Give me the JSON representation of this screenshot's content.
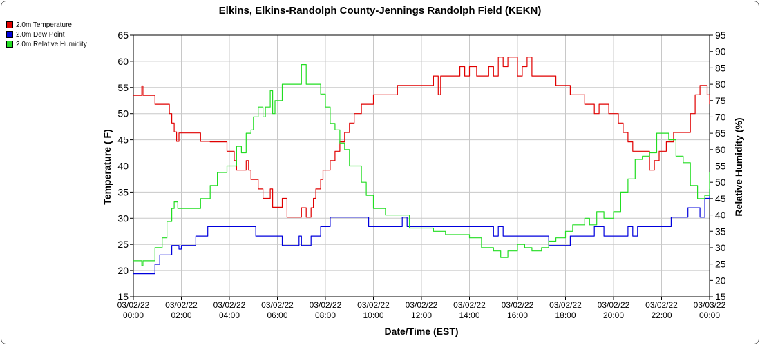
{
  "chart_data": {
    "type": "line",
    "title": "Elkins, Elkins-Randolph County-Jennings Randolph Field (KEKN)",
    "xlabel": "Date/Time (EST)",
    "ylabel_left": "Temperature ( F)",
    "ylabel_right": "Relative Humidity (%)",
    "ylim_left": [
      15,
      65
    ],
    "ylim_right": [
      15,
      95
    ],
    "xlim_hours": [
      0,
      24
    ],
    "grid": true,
    "legend_position": "top-left",
    "x_ticks": [
      {
        "date": "03/02/22",
        "time": "00:00"
      },
      {
        "date": "03/02/22",
        "time": "02:00"
      },
      {
        "date": "03/02/22",
        "time": "04:00"
      },
      {
        "date": "03/02/22",
        "time": "06:00"
      },
      {
        "date": "03/02/22",
        "time": "08:00"
      },
      {
        "date": "03/02/22",
        "time": "10:00"
      },
      {
        "date": "03/02/22",
        "time": "12:00"
      },
      {
        "date": "03/02/22",
        "time": "14:00"
      },
      {
        "date": "03/02/22",
        "time": "16:00"
      },
      {
        "date": "03/02/22",
        "time": "18:00"
      },
      {
        "date": "03/02/22",
        "time": "20:00"
      },
      {
        "date": "03/02/22",
        "time": "22:00"
      },
      {
        "date": "03/03/22",
        "time": "00:00"
      }
    ],
    "y_ticks_left": [
      15,
      20,
      25,
      30,
      35,
      40,
      45,
      50,
      55,
      60,
      65
    ],
    "y_ticks_right": [
      15,
      20,
      25,
      30,
      35,
      40,
      45,
      50,
      55,
      60,
      65,
      70,
      75,
      80,
      85,
      90,
      95
    ],
    "series": [
      {
        "name": "2.0m Temperature",
        "axis": "left",
        "color": "#e00000",
        "x": [
          0,
          0.3,
          0.35,
          0.4,
          0.8,
          0.9,
          1.2,
          1.5,
          1.6,
          1.7,
          1.8,
          1.85,
          1.9,
          2.0,
          2.5,
          2.8,
          2.85,
          3.2,
          3.5,
          3.9,
          4.1,
          4.2,
          4.3,
          4.4,
          4.5,
          4.7,
          4.8,
          4.9,
          5.0,
          5.2,
          5.4,
          5.5,
          5.7,
          5.8,
          5.9,
          6.2,
          6.4,
          6.6,
          6.9,
          7.0,
          7.2,
          7.4,
          7.5,
          7.6,
          7.8,
          7.9,
          8.2,
          8.4,
          8.6,
          8.8,
          9.0,
          9.2,
          9.5,
          9.7,
          10.0,
          10.2,
          10.5,
          10.7,
          11.0,
          11.2,
          11.5,
          12.0,
          12.5,
          12.7,
          12.8,
          13.0,
          13.3,
          13.6,
          13.8,
          14.0,
          14.3,
          14.6,
          14.8,
          15.0,
          15.2,
          15.4,
          15.6,
          16.0,
          16.2,
          16.4,
          16.6,
          17.0,
          17.3,
          17.6,
          18.0,
          18.2,
          18.6,
          18.8,
          19.0,
          19.2,
          19.4,
          19.6,
          19.8,
          20.0,
          20.2,
          20.4,
          20.6,
          20.8,
          21.0,
          21.3,
          21.5,
          21.7,
          21.9,
          22.2,
          22.5,
          22.8,
          23.0,
          23.2,
          23.4,
          23.6,
          23.8,
          23.9,
          24.0
        ],
        "values": [
          53.5,
          53.5,
          55.3,
          53.5,
          53.5,
          51.8,
          51.8,
          50.0,
          48.2,
          46.5,
          44.7,
          44.7,
          46.3,
          46.3,
          46.3,
          44.7,
          44.7,
          44.6,
          44.6,
          42.8,
          42.8,
          41.0,
          39.2,
          39.2,
          39.2,
          41.0,
          39.2,
          37.4,
          37.4,
          35.6,
          33.8,
          33.8,
          35.6,
          32.1,
          32.1,
          33.8,
          30.2,
          30.2,
          30.2,
          32.0,
          30.2,
          32.0,
          33.8,
          35.6,
          37.4,
          39.2,
          41.0,
          42.8,
          44.6,
          46.4,
          48.2,
          50.0,
          51.8,
          51.8,
          53.6,
          53.6,
          53.6,
          53.6,
          55.4,
          55.4,
          55.4,
          55.4,
          57.2,
          53.6,
          57.2,
          57.2,
          57.2,
          59.0,
          57.2,
          59.0,
          57.2,
          57.2,
          59.0,
          57.2,
          60.8,
          59.0,
          60.8,
          57.2,
          59.0,
          60.8,
          57.2,
          57.2,
          57.2,
          55.4,
          55.4,
          53.6,
          53.6,
          51.8,
          51.8,
          50.0,
          51.8,
          51.8,
          50.0,
          50.0,
          48.2,
          46.4,
          44.6,
          42.8,
          42.8,
          42.8,
          39.2,
          41.0,
          42.8,
          44.6,
          46.4,
          46.4,
          46.4,
          50.0,
          53.6,
          55.4,
          55.4,
          53.6,
          51.8
        ]
      },
      {
        "name": "2.0m Dew Point",
        "axis": "left",
        "color": "#0000dd",
        "x": [
          0,
          0.8,
          0.9,
          1.1,
          1.3,
          1.6,
          1.8,
          1.9,
          2.0,
          2.4,
          2.6,
          2.8,
          3.1,
          3.5,
          4.0,
          4.5,
          5.0,
          5.1,
          5.3,
          5.5,
          6.0,
          6.2,
          6.4,
          6.9,
          7.0,
          7.2,
          7.4,
          7.6,
          7.8,
          8.0,
          8.2,
          8.6,
          9.0,
          9.5,
          9.8,
          10.0,
          10.5,
          11.0,
          11.2,
          11.4,
          11.6,
          12.0,
          12.5,
          13.0,
          13.5,
          14.0,
          14.5,
          15.0,
          15.2,
          15.4,
          15.6,
          16.0,
          16.5,
          17.0,
          17.3,
          17.6,
          18.0,
          18.2,
          18.6,
          19.0,
          19.2,
          19.6,
          20.0,
          20.4,
          20.6,
          20.8,
          21.0,
          21.5,
          22.0,
          22.4,
          22.6,
          23.0,
          23.1,
          23.3,
          23.6,
          23.8,
          23.9,
          24.0
        ],
        "values": [
          19.4,
          19.4,
          21.2,
          23.0,
          23.0,
          24.8,
          24.8,
          24.1,
          24.8,
          24.8,
          26.6,
          26.6,
          28.4,
          28.4,
          28.4,
          28.4,
          28.4,
          26.6,
          26.6,
          26.6,
          26.6,
          24.8,
          24.8,
          26.6,
          24.8,
          24.8,
          26.6,
          26.6,
          28.4,
          28.4,
          30.2,
          30.2,
          30.2,
          30.2,
          28.4,
          28.4,
          28.4,
          28.4,
          30.2,
          28.4,
          28.4,
          28.4,
          28.4,
          28.4,
          28.4,
          28.4,
          28.4,
          26.6,
          28.4,
          26.6,
          26.6,
          26.6,
          26.6,
          26.6,
          24.8,
          24.8,
          24.8,
          26.6,
          26.6,
          26.6,
          28.4,
          26.6,
          26.6,
          26.6,
          28.4,
          26.6,
          28.4,
          28.4,
          28.4,
          30.2,
          30.2,
          30.2,
          32.0,
          32.0,
          30.2,
          33.8,
          33.8,
          35.6
        ]
      },
      {
        "name": "2.0m Relative Humidity",
        "axis": "right",
        "color": "#22dd22",
        "x": [
          0,
          0.3,
          0.35,
          0.4,
          0.8,
          0.9,
          1.2,
          1.4,
          1.6,
          1.7,
          1.8,
          1.85,
          1.9,
          2.0,
          2.5,
          2.8,
          3.2,
          3.5,
          3.9,
          4.1,
          4.3,
          4.5,
          4.7,
          4.9,
          5.0,
          5.2,
          5.4,
          5.5,
          5.7,
          5.8,
          5.9,
          6.2,
          6.5,
          6.7,
          6.9,
          7.0,
          7.2,
          7.4,
          7.6,
          7.8,
          8.0,
          8.2,
          8.4,
          8.6,
          8.8,
          9.0,
          9.2,
          9.5,
          9.7,
          10.0,
          10.5,
          11.0,
          11.5,
          12.0,
          12.5,
          13.0,
          13.5,
          14.0,
          14.5,
          15.0,
          15.3,
          15.6,
          16.0,
          16.3,
          16.6,
          17.0,
          17.3,
          17.6,
          18.0,
          18.3,
          18.6,
          18.8,
          19.0,
          19.3,
          19.6,
          20.0,
          20.3,
          20.6,
          20.9,
          21.2,
          21.5,
          21.8,
          22.0,
          22.3,
          22.6,
          22.9,
          23.2,
          23.5,
          23.8,
          24.0
        ],
        "values": [
          26,
          26,
          24.5,
          26,
          26,
          30,
          33,
          38,
          42,
          44,
          44,
          42,
          42,
          42,
          42,
          45,
          49,
          53,
          55,
          55,
          61,
          59,
          65,
          66,
          70,
          73,
          70,
          73,
          78,
          71,
          75,
          80,
          80,
          80,
          80,
          86,
          80,
          80,
          80,
          77,
          73,
          68,
          66,
          62,
          60,
          55,
          55,
          50,
          46,
          42,
          40,
          40,
          36,
          36,
          35,
          34,
          34,
          33,
          30,
          29,
          27,
          29,
          31,
          30,
          29,
          30,
          32,
          33,
          35,
          37,
          37,
          39,
          37,
          41,
          39,
          41,
          47,
          51,
          57,
          58,
          59,
          65,
          65,
          63,
          58,
          56,
          49,
          45,
          46,
          53
        ]
      }
    ]
  }
}
